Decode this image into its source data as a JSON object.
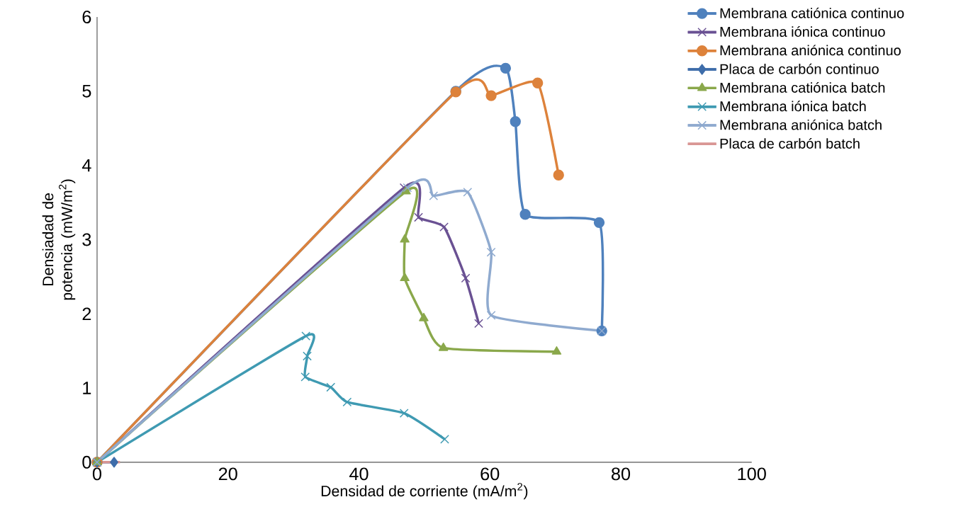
{
  "chart_data": {
    "type": "line",
    "xlabel": "Densidad de corriente (mA/m$^{2}$)",
    "ylabel": "Densiadad de potencia (mW/m$^{2}$)",
    "xlim": [
      0,
      100
    ],
    "ylim": [
      0,
      6
    ],
    "xticks": [
      0,
      20,
      40,
      60,
      80,
      100
    ],
    "yticks": [
      0,
      1,
      2,
      3,
      4,
      5,
      6
    ],
    "grid": false,
    "legend": "top right",
    "series": [
      {
        "name": "Membrana catiónica continuo",
        "color": "#4f81bd",
        "marker": "circle",
        "x": [
          0,
          54.8,
          62.4,
          63.9,
          65.4,
          76.7,
          77.1
        ],
        "values": [
          0,
          5.0,
          5.31,
          4.59,
          3.34,
          3.23,
          1.77
        ]
      },
      {
        "name": "Membrana iónica continuo",
        "color": "#6a5193",
        "marker": "cross",
        "x": [
          0,
          46.9,
          49.1,
          53.0,
          56.3,
          58.3
        ],
        "values": [
          0,
          3.7,
          3.3,
          3.17,
          2.48,
          1.87
        ]
      },
      {
        "name": "Membrana aniónica continuo",
        "color": "#dd823b",
        "marker": "circle",
        "x": [
          0,
          54.8,
          60.2,
          67.3,
          70.5
        ],
        "values": [
          0,
          4.99,
          4.94,
          5.11,
          3.87
        ]
      },
      {
        "name": "Placa de carbón continuo",
        "color": "#3e6daa",
        "marker": "diamond",
        "x": [
          0,
          2.6
        ],
        "values": [
          0,
          0
        ]
      },
      {
        "name": "Membrana catiónica batch",
        "color": "#8aa84b",
        "marker": "triangle",
        "x": [
          0,
          47.2,
          47.0,
          47.0,
          49.9,
          52.9,
          70.2
        ],
        "values": [
          0,
          3.65,
          3.0,
          2.48,
          1.94,
          1.54,
          1.49
        ]
      },
      {
        "name": "Membrana iónica batch",
        "color": "#3f9ab2",
        "marker": "cross",
        "x": [
          0,
          31.9,
          32.1,
          31.8,
          35.7,
          38.2,
          46.9,
          53.1
        ],
        "values": [
          0,
          1.7,
          1.43,
          1.15,
          1.01,
          0.81,
          0.66,
          0.31
        ]
      },
      {
        "name": "Membrana aniónica batch",
        "color": "#8faacf",
        "marker": "cross",
        "x": [
          0,
          47.4,
          51.4,
          56.6,
          60.2,
          60.2,
          77.1
        ],
        "values": [
          0,
          3.7,
          3.59,
          3.64,
          2.83,
          1.98,
          1.77
        ]
      },
      {
        "name": "Placa de carbón batch",
        "color": "#d99694",
        "marker": "none",
        "x": [
          0,
          3.5
        ],
        "values": [
          0,
          0
        ]
      }
    ]
  }
}
